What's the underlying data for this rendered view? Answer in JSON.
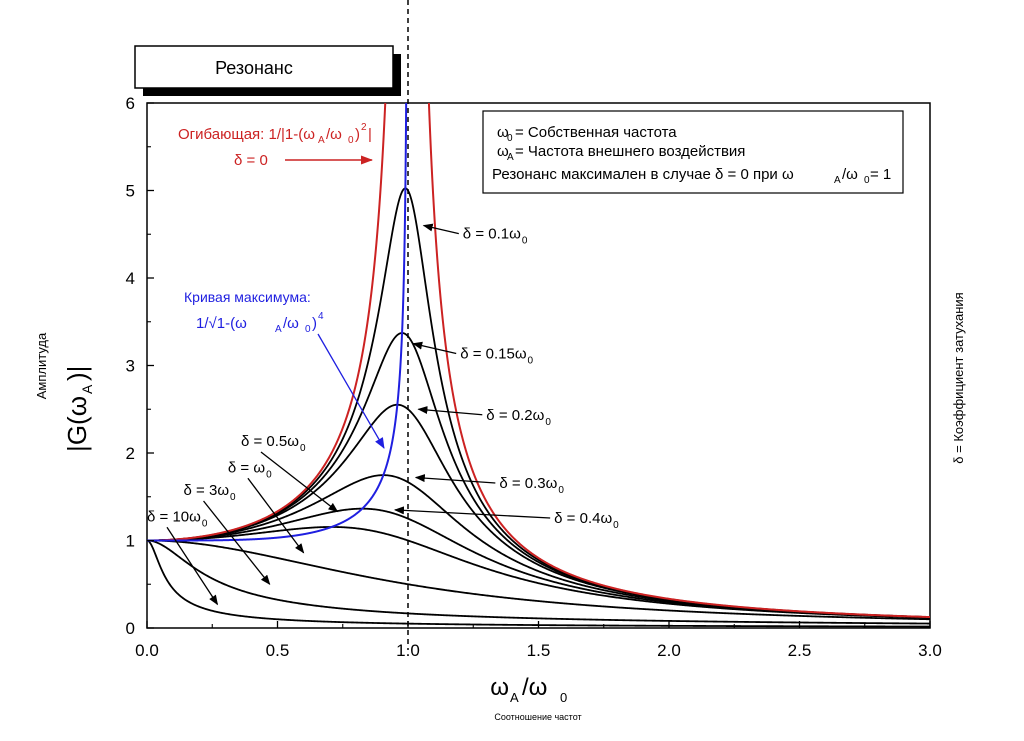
{
  "chart_data": {
    "type": "line",
    "title": "Резонанс",
    "xlabel": {
      "main": "ω",
      "sub": "A",
      "rest": "/ω",
      "rest_sub": "0"
    },
    "xlabel_caption": "Соотношение частот",
    "ylabel_caption": "Амплитуда",
    "ylabel": {
      "pre": "|G(ω",
      "sub": "A",
      "post": ")|"
    },
    "right_caption": "δ = Коэффициент затухания",
    "xlim": [
      0,
      3.0
    ],
    "ylim": [
      0,
      6
    ],
    "x_ticks": [
      "0.0",
      "0.5",
      "1.0",
      "1.5",
      "2.0",
      "2.5",
      "3.0"
    ],
    "y_ticks": [
      "0",
      "1",
      "2",
      "3",
      "4",
      "5",
      "6"
    ],
    "resonance_line_x": 1.0,
    "colors": {
      "envelope": "#cc2222",
      "max_curve": "#1f1fe0",
      "curves": "#000000"
    },
    "legend": {
      "line1_sym": "ω",
      "line1_sub": "0",
      "line1_text": "= Собственная частота",
      "line2_sym": "ω",
      "line2_sub": "A",
      "line2_text": "= Частота внешнего воздействия",
      "line3_a": "Резонанс максимален в случае  δ = 0 при ω",
      "line3_sub1": "A",
      "line3_b": "/ω",
      "line3_sub2": "0",
      "line3_c": " = 1"
    },
    "envelope_label": {
      "pre": "Огибающая: 1/|1-(ω",
      "sub1": "A",
      "mid": "/ω",
      "sub2": "0",
      "post": ")",
      "sup": "2",
      "end": "|"
    },
    "envelope_delta_label": "δ = 0",
    "max_curve_label": "Кривая максимума:",
    "max_curve_formula": {
      "pre": "1/√1-(ω",
      "sub1": "A",
      "mid": "/ω",
      "sub2": "0",
      "post": ")",
      "sup": "4"
    },
    "series": [
      {
        "label_main": "δ = 0.1ω",
        "label_sub": "0",
        "delta": 0.1
      },
      {
        "label_main": "δ = 0.15ω",
        "label_sub": "0",
        "delta": 0.15
      },
      {
        "label_main": "δ = 0.2ω",
        "label_sub": "0",
        "delta": 0.2
      },
      {
        "label_main": "δ = 0.3ω",
        "label_sub": "0",
        "delta": 0.3
      },
      {
        "label_main": "δ = 0.4ω",
        "label_sub": "0",
        "delta": 0.4
      },
      {
        "label_main": "δ = 0.5ω",
        "label_sub": "0",
        "delta": 0.5
      },
      {
        "label_main": "δ = ω",
        "label_sub": "0",
        "delta": 1.0
      },
      {
        "label_main": "δ = 3ω",
        "label_sub": "0",
        "delta": 3.0
      },
      {
        "label_main": "δ = 10ω",
        "label_sub": "0",
        "delta": 10.0
      }
    ]
  }
}
